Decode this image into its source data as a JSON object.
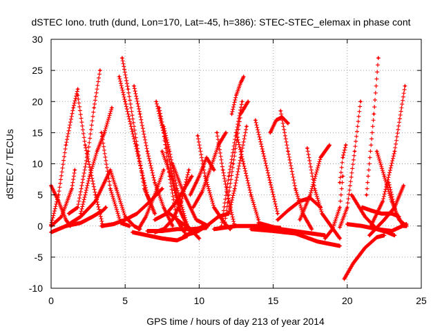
{
  "chart_data": {
    "type": "scatter",
    "title": "dSTEC Iono. truth (dund, Lon=170, Lat=-45, h=386): STEC-STEC_elemax in phase cont",
    "xlabel": "GPS time / hours of day 213 of year 2014",
    "ylabel": "dSTEC  / TECUs",
    "xlim": [
      0,
      25
    ],
    "ylim": [
      -10,
      30
    ],
    "xticks": [
      0,
      5,
      10,
      15,
      20,
      25
    ],
    "yticks": [
      -10,
      -5,
      0,
      5,
      10,
      15,
      20,
      25,
      30
    ],
    "grid": true,
    "marker": "plus",
    "color": "#ff0000",
    "series": [
      {
        "x": [
          0.0,
          0.5,
          1.0,
          1.5,
          1.8
        ],
        "y": [
          0.2,
          5,
          13,
          19,
          22
        ]
      },
      {
        "x": [
          1.2,
          1.8,
          2.5,
          2.9,
          3.3
        ],
        "y": [
          2,
          3,
          12,
          19,
          25
        ]
      },
      {
        "x": [
          0.0,
          0.5,
          1.0,
          1.3
        ],
        "y": [
          6.5,
          4,
          1,
          0
        ]
      },
      {
        "x": [
          0.0,
          0.7,
          1.4,
          1.6
        ],
        "y": [
          0,
          1.5,
          6,
          9
        ]
      },
      {
        "x": [
          1.8,
          2.3,
          3.0,
          3.5
        ],
        "y": [
          21,
          13,
          5,
          0
        ]
      },
      {
        "x": [
          0.0,
          1.0,
          2.0,
          2.8,
          3.5,
          3.7
        ],
        "y": [
          -1,
          0,
          0.5,
          1.5,
          2.5,
          3
        ]
      },
      {
        "x": [
          2.0,
          2.6,
          3.1,
          3.6,
          4.1
        ],
        "y": [
          2,
          8,
          12,
          15,
          19
        ]
      },
      {
        "x": [
          3.4,
          4.0,
          4.7,
          5.3
        ],
        "y": [
          15,
          6,
          0.5,
          0
        ]
      },
      {
        "x": [
          1.0,
          2.0,
          3.0,
          3.6,
          4.0,
          4.4
        ],
        "y": [
          0,
          1.5,
          4,
          7,
          9,
          6
        ]
      },
      {
        "x": [
          4.4,
          5.0,
          5.6,
          6.0
        ],
        "y": [
          6,
          1.5,
          0,
          -0.5
        ]
      },
      {
        "x": [
          3.4,
          4.2,
          5.0,
          5.8,
          6.7,
          7.5
        ],
        "y": [
          0,
          0.3,
          1,
          2,
          4,
          6
        ]
      },
      {
        "x": [
          4.6,
          5.0,
          5.8,
          6.5,
          7.0
        ],
        "y": [
          24,
          20,
          12,
          5,
          2
        ]
      },
      {
        "x": [
          4.8,
          5.2,
          5.8,
          6.3,
          7.0
        ],
        "y": [
          27,
          22,
          13,
          6,
          2
        ]
      },
      {
        "x": [
          5.6,
          6.0,
          6.5,
          7.0,
          7.6,
          8.2
        ],
        "y": [
          22.5,
          18,
          12,
          7,
          3,
          0
        ]
      },
      {
        "x": [
          5.9,
          6.4,
          7.0,
          7.6
        ],
        "y": [
          -0.5,
          1.5,
          5,
          9
        ]
      },
      {
        "x": [
          5.5,
          6.5,
          7.5,
          8.5,
          9.2
        ],
        "y": [
          -1,
          -1.5,
          -2,
          -2.3,
          -1.6
        ]
      },
      {
        "x": [
          7.1,
          7.6,
          8.0,
          8.5,
          9.0
        ],
        "y": [
          20,
          15,
          8,
          1,
          -1
        ]
      },
      {
        "x": [
          7.3,
          7.7,
          8.2,
          8.8,
          9.4
        ],
        "y": [
          19,
          14,
          8,
          2,
          -1
        ]
      },
      {
        "x": [
          7.6,
          8.0,
          8.5,
          9.2,
          10.0
        ],
        "y": [
          16,
          12,
          6,
          0,
          -2
        ]
      },
      {
        "x": [
          7.5,
          8.1,
          8.6,
          9.2
        ],
        "y": [
          12,
          8,
          3,
          0
        ]
      },
      {
        "x": [
          7.0,
          7.6,
          8.2,
          8.8,
          9.3
        ],
        "y": [
          -1,
          -0.5,
          1,
          4,
          9
        ]
      },
      {
        "x": [
          7.0,
          7.8,
          8.5,
          9.0,
          9.5
        ],
        "y": [
          1,
          2,
          4,
          6,
          8
        ]
      },
      {
        "x": [
          6.5,
          7.5,
          8.5,
          9.5,
          10.5
        ],
        "y": [
          -0.8,
          -0.8,
          -0.5,
          -0.5,
          -0.3
        ]
      },
      {
        "x": [
          8.0,
          8.8,
          9.6,
          10.3
        ],
        "y": [
          2,
          0.5,
          -0.8,
          0
        ]
      },
      {
        "x": [
          8.2,
          9.0,
          9.8,
          10.6
        ],
        "y": [
          10,
          5,
          1,
          0
        ]
      },
      {
        "x": [
          9.0,
          9.8,
          10.5,
          11.3,
          12.0
        ],
        "y": [
          -1.5,
          -1,
          0,
          1.5,
          2
        ]
      },
      {
        "x": [
          9.4,
          10.0,
          10.5,
          11.0
        ],
        "y": [
          5,
          8,
          11,
          9
        ]
      },
      {
        "x": [
          9.9,
          10.4,
          11.0,
          11.7,
          12.1
        ],
        "y": [
          14.5,
          8,
          3,
          0.5,
          -0.5
        ]
      },
      {
        "x": [
          9.6,
          10.2,
          10.8,
          11.3,
          11.8
        ],
        "y": [
          3,
          5.5,
          9.5,
          13,
          15
        ]
      },
      {
        "x": [
          11.2,
          11.6,
          12.0,
          12.4
        ],
        "y": [
          15,
          9,
          4,
          0
        ]
      },
      {
        "x": [
          11.5,
          12.0,
          12.5,
          12.9
        ],
        "y": [
          0,
          8,
          15,
          20
        ]
      },
      {
        "x": [
          11.7,
          12.3,
          12.8,
          13.3
        ],
        "y": [
          0,
          10,
          18,
          20
        ]
      },
      {
        "x": [
          12.2,
          12.5,
          12.8,
          13.0
        ],
        "y": [
          18,
          21,
          23,
          24
        ]
      },
      {
        "x": [
          12.0,
          12.4,
          12.8,
          13.2
        ],
        "y": [
          2,
          6,
          11,
          16
        ]
      },
      {
        "x": [
          12.5,
          13.0,
          13.5,
          14.0
        ],
        "y": [
          15,
          10,
          5,
          1
        ]
      },
      {
        "x": [
          13.8,
          14.3,
          14.8,
          15.3
        ],
        "y": [
          17,
          12,
          7,
          2
        ]
      },
      {
        "x": [
          14.8,
          15.2,
          15.6,
          16.0
        ],
        "y": [
          15,
          17,
          17.5,
          16.5
        ]
      },
      {
        "x": [
          15.5,
          16.0,
          16.5,
          17.0,
          17.6
        ],
        "y": [
          18.5,
          12,
          6,
          2,
          -0.5
        ]
      },
      {
        "x": [
          15.3,
          16.0,
          16.8,
          17.5,
          18.2
        ],
        "y": [
          1,
          2.5,
          4,
          4.5,
          3
        ]
      },
      {
        "x": [
          16.8,
          17.5,
          18.2,
          18.8
        ],
        "y": [
          1,
          5,
          11,
          13
        ]
      },
      {
        "x": [
          17.3,
          17.8,
          18.3,
          18.9,
          19.5
        ],
        "y": [
          12.5,
          6,
          2,
          0,
          -2
        ]
      },
      {
        "x": [
          18.5,
          19.0,
          19.5,
          19.7
        ],
        "y": [
          -2,
          -0.5,
          3,
          8
        ]
      },
      {
        "x": [
          19.5,
          19.7,
          19.9
        ],
        "y": [
          7,
          11,
          13
        ]
      },
      {
        "x": [
          13.5,
          15.0,
          16.5,
          18.0,
          19.5
        ],
        "y": [
          -0.5,
          -0.8,
          -1.2,
          -2.5,
          -3.2
        ]
      },
      {
        "x": [
          14.0,
          15.5,
          17.0,
          18.5
        ],
        "y": [
          0.5,
          -0.5,
          -1,
          -1.5
        ]
      },
      {
        "x": [
          11.0,
          12.5,
          14.0,
          15.5
        ],
        "y": [
          -0.5,
          0,
          0,
          -0.3
        ]
      },
      {
        "x": [
          19.5,
          20.0,
          20.5,
          20.9
        ],
        "y": [
          -0.2,
          3,
          12,
          20
        ]
      },
      {
        "x": [
          19.8,
          20.4,
          21.2,
          22.0,
          22.5
        ],
        "y": [
          -8.5,
          -6,
          -3.5,
          -1.8,
          -1.5
        ]
      },
      {
        "x": [
          21.3,
          21.8,
          22.1
        ],
        "y": [
          5,
          18,
          27
        ]
      },
      {
        "x": [
          21.0,
          21.6,
          22.3,
          23.0,
          23.5
        ],
        "y": [
          3,
          2.5,
          2,
          2,
          1.5
        ]
      },
      {
        "x": [
          22.0,
          22.5,
          23.0,
          23.5,
          24.0
        ],
        "y": [
          12,
          8,
          4,
          1,
          0
        ]
      },
      {
        "x": [
          21.6,
          22.4,
          23.2,
          23.9
        ],
        "y": [
          0,
          4,
          12,
          22.5
        ]
      },
      {
        "x": [
          20.3,
          21.2,
          22.0,
          22.7,
          23.2
        ],
        "y": [
          5,
          1.5,
          -0.5,
          -1,
          -1.5
        ]
      },
      {
        "x": [
          21.5,
          22.5,
          23.2,
          23.8
        ],
        "y": [
          -1.5,
          1,
          3,
          6.5
        ]
      },
      {
        "x": [
          22.8,
          23.3,
          23.8,
          24.0
        ],
        "y": [
          7,
          2,
          0,
          0
        ]
      },
      {
        "x": [
          20.0,
          21.0,
          22.0,
          23.0,
          24.0
        ],
        "y": [
          0.3,
          0,
          -0.5,
          -0.8,
          0.3
        ]
      }
    ]
  }
}
